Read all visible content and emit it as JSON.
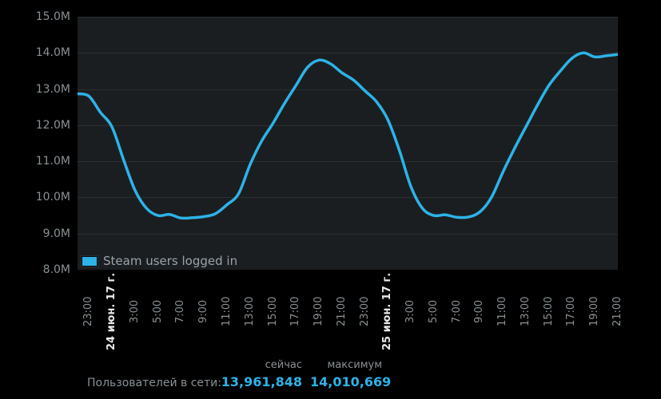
{
  "colors": {
    "page_bg": "#000000",
    "plot_bg": "#1b1e20",
    "grid": "#2c2f32",
    "line": "#2db3e8",
    "axis_text": "#8a9196",
    "date_text": "#e8eaec",
    "legend_text": "#9aa3ad",
    "value_text": "#2db3e8"
  },
  "legend": {
    "label": "Steam users logged in"
  },
  "summary": {
    "now_header": "сейчас",
    "max_header": "максимум",
    "row_label": "Пользователей в сети:",
    "now_value": "13,961,848",
    "max_value": "14,010,669"
  },
  "chart_data": {
    "type": "line",
    "title": "Steam users logged in",
    "xlabel": "",
    "ylabel": "",
    "ylim": [
      8,
      15
    ],
    "grid": "horizontal-only",
    "legend_position": "bottom-left-inside-plot",
    "y_ticks": [
      {
        "value": 15,
        "label": "15.0M"
      },
      {
        "value": 14,
        "label": "14.0M"
      },
      {
        "value": 13,
        "label": "13.0M"
      },
      {
        "value": 12,
        "label": "12.0M"
      },
      {
        "value": 11,
        "label": "11.0M"
      },
      {
        "value": 10,
        "label": "10.0M"
      },
      {
        "value": 9,
        "label": "9.0M"
      },
      {
        "value": 8,
        "label": "8.0M"
      }
    ],
    "x_unit": "hours",
    "x_hours_span": 47,
    "x_ticks": [
      {
        "hour_offset": 1,
        "label": "23:00",
        "is_date": false
      },
      {
        "hour_offset": 3,
        "label": "24 июн. 17 г.",
        "is_date": true
      },
      {
        "hour_offset": 5,
        "label": "3:00",
        "is_date": false
      },
      {
        "hour_offset": 7,
        "label": "5:00",
        "is_date": false
      },
      {
        "hour_offset": 9,
        "label": "7:00",
        "is_date": false
      },
      {
        "hour_offset": 11,
        "label": "9:00",
        "is_date": false
      },
      {
        "hour_offset": 13,
        "label": "11:00",
        "is_date": false
      },
      {
        "hour_offset": 15,
        "label": "13:00",
        "is_date": false
      },
      {
        "hour_offset": 17,
        "label": "15:00",
        "is_date": false
      },
      {
        "hour_offset": 19,
        "label": "17:00",
        "is_date": false
      },
      {
        "hour_offset": 21,
        "label": "19:00",
        "is_date": false
      },
      {
        "hour_offset": 23,
        "label": "21:00",
        "is_date": false
      },
      {
        "hour_offset": 25,
        "label": "23:00",
        "is_date": false
      },
      {
        "hour_offset": 27,
        "label": "25 июн. 17 г.",
        "is_date": true
      },
      {
        "hour_offset": 29,
        "label": "3:00",
        "is_date": false
      },
      {
        "hour_offset": 31,
        "label": "5:00",
        "is_date": false
      },
      {
        "hour_offset": 33,
        "label": "7:00",
        "is_date": false
      },
      {
        "hour_offset": 35,
        "label": "9:00",
        "is_date": false
      },
      {
        "hour_offset": 37,
        "label": "11:00",
        "is_date": false
      },
      {
        "hour_offset": 39,
        "label": "13:00",
        "is_date": false
      },
      {
        "hour_offset": 41,
        "label": "15:00",
        "is_date": false
      },
      {
        "hour_offset": 43,
        "label": "17:00",
        "is_date": false
      },
      {
        "hour_offset": 45,
        "label": "19:00",
        "is_date": false
      },
      {
        "hour_offset": 47,
        "label": "21:00",
        "is_date": false
      }
    ],
    "series": [
      {
        "name": "Steam users logged in",
        "unit": "millions of users",
        "hourly_values_millions": [
          12.87,
          12.8,
          12.35,
          11.95,
          11.05,
          10.2,
          9.7,
          9.5,
          9.53,
          9.43,
          9.44,
          9.47,
          9.55,
          9.8,
          10.1,
          10.9,
          11.55,
          12.05,
          12.6,
          13.1,
          13.6,
          13.8,
          13.7,
          13.45,
          13.25,
          12.95,
          12.65,
          12.15,
          11.3,
          10.3,
          9.7,
          9.5,
          9.52,
          9.45,
          9.46,
          9.6,
          10.0,
          10.7,
          11.35,
          11.95,
          12.55,
          13.1,
          13.5,
          13.85,
          14.0,
          13.89,
          13.92,
          13.96
        ]
      }
    ]
  }
}
